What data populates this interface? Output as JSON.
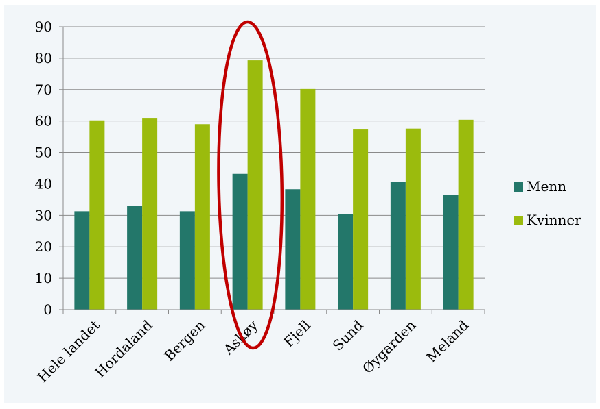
{
  "chart_data": {
    "type": "bar",
    "categories": [
      "Hele landet",
      "Hordaland",
      "Bergen",
      "Askøy",
      "Fjell",
      "Sund",
      "Øygarden",
      "Meland"
    ],
    "series": [
      {
        "name": "Menn",
        "color": "#23776a",
        "values": [
          31.3,
          33,
          31.3,
          43.2,
          38.3,
          30.5,
          40.7,
          36.6
        ]
      },
      {
        "name": "Kvinner",
        "color": "#9bbb0d",
        "values": [
          60.2,
          61,
          59,
          79.3,
          70.2,
          57.3,
          57.6,
          60.4
        ]
      }
    ],
    "ylim": [
      0,
      90
    ],
    "yticks": [
      0,
      10,
      20,
      30,
      40,
      50,
      60,
      70,
      80,
      90
    ],
    "grid": true,
    "legend_position": "right",
    "title": "",
    "xlabel": "",
    "ylabel": "",
    "annotation": {
      "shape": "ellipse",
      "color": "#c00000",
      "highlights_category": "Askøy"
    }
  }
}
